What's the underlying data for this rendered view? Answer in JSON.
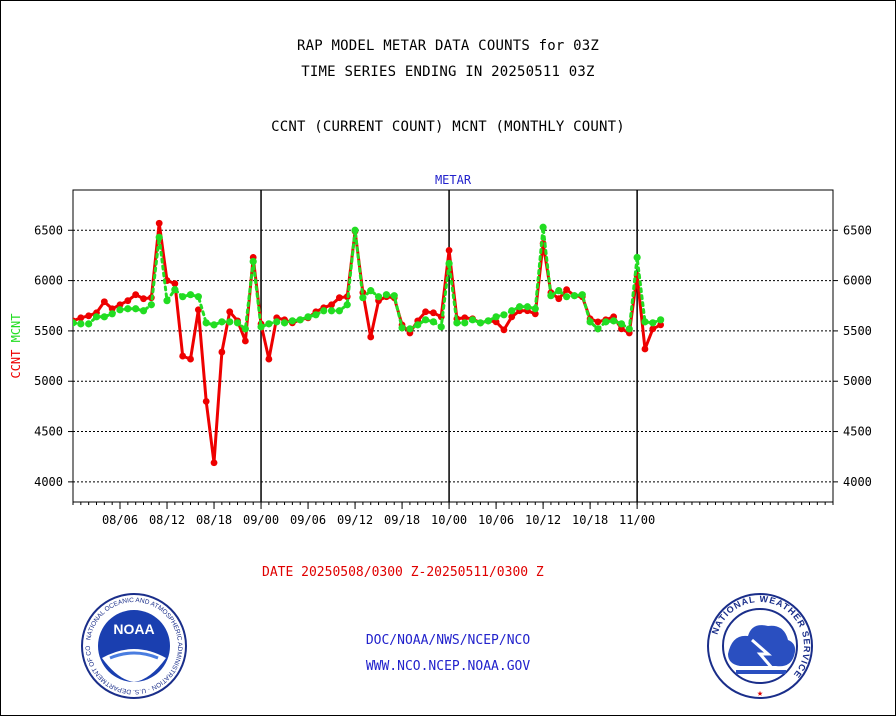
{
  "header": {
    "title_line1": "RAP MODEL METAR DATA COUNTS for 03Z",
    "title_line2": "TIME SERIES ENDING IN 20250511 03Z",
    "subtitle": "CCNT (CURRENT COUNT) MCNT (MONTHLY COUNT)"
  },
  "footer": {
    "date_range": "DATE 20250508/0300 Z-20250511/0300 Z",
    "org_line": "DOC/NOAA/NWS/NCEP/NCO",
    "url_line": "WWW.NCO.NCEP.NOAA.GOV"
  },
  "logos": {
    "noaa": {
      "center_text": "NOAA",
      "ring_text": "NATIONAL OCEANIC AND ATMOSPHERIC ADMINISTRATION · U.S. DEPARTMENT OF COMMERCE"
    },
    "nws": {
      "ring_text": "NATIONAL WEATHER SERVICE"
    }
  },
  "colors": {
    "ccnt": "#ee0000",
    "mcnt": "#22dd22",
    "title_blue": "#2222cc",
    "grid": "#000000"
  },
  "chart_data": {
    "type": "line",
    "title": "METAR",
    "ylabel_left": [
      "CCNT",
      "MCNT"
    ],
    "ylim": [
      3800,
      6900
    ],
    "yticks": [
      4000,
      4500,
      5000,
      5500,
      6000,
      6500
    ],
    "xlim_days": [
      -4,
      93
    ],
    "x_ticks": [
      {
        "day": 2,
        "label": "08/06"
      },
      {
        "day": 8,
        "label": "08/12"
      },
      {
        "day": 14,
        "label": "08/18"
      },
      {
        "day": 20,
        "label": "09/00"
      },
      {
        "day": 26,
        "label": "09/06"
      },
      {
        "day": 32,
        "label": "09/12"
      },
      {
        "day": 38,
        "label": "09/18"
      },
      {
        "day": 44,
        "label": "10/00"
      },
      {
        "day": 50,
        "label": "10/06"
      },
      {
        "day": 56,
        "label": "10/12"
      },
      {
        "day": 62,
        "label": "10/18"
      },
      {
        "day": 68,
        "label": "11/00"
      }
    ],
    "month_boundaries_days": [
      20,
      44,
      68
    ],
    "series": [
      {
        "name": "CCNT",
        "color": "#ee0000",
        "points": [
          [
            -4,
            5600
          ],
          [
            -3,
            5630
          ],
          [
            -2,
            5650
          ],
          [
            -1,
            5680
          ],
          [
            0,
            5790
          ],
          [
            1,
            5720
          ],
          [
            2,
            5760
          ],
          [
            3,
            5800
          ],
          [
            4,
            5860
          ],
          [
            5,
            5820
          ],
          [
            6,
            5830
          ],
          [
            7,
            6570
          ],
          [
            8,
            6000
          ],
          [
            9,
            5970
          ],
          [
            10,
            5250
          ],
          [
            11,
            5220
          ],
          [
            12,
            5710
          ],
          [
            13,
            4800
          ],
          [
            14,
            4190
          ],
          [
            15,
            5290
          ],
          [
            16,
            5690
          ],
          [
            17,
            5600
          ],
          [
            18,
            5400
          ],
          [
            19,
            6230
          ],
          [
            20,
            5570
          ],
          [
            21,
            5220
          ],
          [
            22,
            5630
          ],
          [
            23,
            5610
          ],
          [
            24,
            5580
          ],
          [
            25,
            5610
          ],
          [
            26,
            5630
          ],
          [
            27,
            5690
          ],
          [
            28,
            5730
          ],
          [
            29,
            5760
          ],
          [
            30,
            5830
          ],
          [
            31,
            5840
          ],
          [
            32,
            6490
          ],
          [
            33,
            5880
          ],
          [
            34,
            5440
          ],
          [
            35,
            5800
          ],
          [
            36,
            5840
          ],
          [
            37,
            5830
          ],
          [
            38,
            5560
          ],
          [
            39,
            5480
          ],
          [
            40,
            5600
          ],
          [
            41,
            5690
          ],
          [
            42,
            5680
          ],
          [
            43,
            5640
          ],
          [
            44,
            6300
          ],
          [
            45,
            5620
          ],
          [
            46,
            5630
          ],
          [
            47,
            5620
          ],
          [
            48,
            5580
          ],
          [
            49,
            5600
          ],
          [
            50,
            5590
          ],
          [
            51,
            5510
          ],
          [
            52,
            5640
          ],
          [
            53,
            5700
          ],
          [
            54,
            5700
          ],
          [
            55,
            5670
          ],
          [
            56,
            6370
          ],
          [
            57,
            5880
          ],
          [
            58,
            5820
          ],
          [
            59,
            5910
          ],
          [
            60,
            5850
          ],
          [
            61,
            5840
          ],
          [
            62,
            5620
          ],
          [
            63,
            5590
          ],
          [
            64,
            5610
          ],
          [
            65,
            5640
          ],
          [
            66,
            5520
          ],
          [
            67,
            5480
          ],
          [
            68,
            6050
          ],
          [
            69,
            5320
          ],
          [
            70,
            5520
          ],
          [
            71,
            5560
          ]
        ]
      },
      {
        "name": "MCNT",
        "color": "#22dd22",
        "points": [
          [
            -4,
            5580
          ],
          [
            -3,
            5570
          ],
          [
            -2,
            5570
          ],
          [
            -1,
            5640
          ],
          [
            0,
            5640
          ],
          [
            1,
            5670
          ],
          [
            2,
            5710
          ],
          [
            3,
            5720
          ],
          [
            4,
            5720
          ],
          [
            5,
            5700
          ],
          [
            6,
            5760
          ],
          [
            7,
            6430
          ],
          [
            8,
            5800
          ],
          [
            9,
            5910
          ],
          [
            10,
            5840
          ],
          [
            11,
            5860
          ],
          [
            12,
            5840
          ],
          [
            13,
            5580
          ],
          [
            14,
            5560
          ],
          [
            15,
            5590
          ],
          [
            16,
            5590
          ],
          [
            17,
            5580
          ],
          [
            18,
            5520
          ],
          [
            19,
            6190
          ],
          [
            20,
            5540
          ],
          [
            21,
            5570
          ],
          [
            22,
            5590
          ],
          [
            23,
            5580
          ],
          [
            24,
            5600
          ],
          [
            25,
            5610
          ],
          [
            26,
            5640
          ],
          [
            27,
            5660
          ],
          [
            28,
            5700
          ],
          [
            29,
            5700
          ],
          [
            30,
            5700
          ],
          [
            31,
            5760
          ],
          [
            32,
            6500
          ],
          [
            33,
            5830
          ],
          [
            34,
            5900
          ],
          [
            35,
            5840
          ],
          [
            36,
            5860
          ],
          [
            37,
            5850
          ],
          [
            38,
            5530
          ],
          [
            39,
            5520
          ],
          [
            40,
            5560
          ],
          [
            41,
            5610
          ],
          [
            42,
            5590
          ],
          [
            43,
            5540
          ],
          [
            44,
            6170
          ],
          [
            45,
            5580
          ],
          [
            46,
            5580
          ],
          [
            47,
            5610
          ],
          [
            48,
            5580
          ],
          [
            49,
            5600
          ],
          [
            50,
            5640
          ],
          [
            51,
            5660
          ],
          [
            52,
            5700
          ],
          [
            53,
            5740
          ],
          [
            54,
            5740
          ],
          [
            55,
            5720
          ],
          [
            56,
            6530
          ],
          [
            57,
            5850
          ],
          [
            58,
            5900
          ],
          [
            59,
            5840
          ],
          [
            60,
            5850
          ],
          [
            61,
            5860
          ],
          [
            62,
            5590
          ],
          [
            63,
            5520
          ],
          [
            64,
            5590
          ],
          [
            65,
            5600
          ],
          [
            66,
            5570
          ],
          [
            67,
            5520
          ],
          [
            68,
            6230
          ],
          [
            69,
            5590
          ],
          [
            70,
            5580
          ],
          [
            71,
            5610
          ]
        ]
      }
    ]
  }
}
